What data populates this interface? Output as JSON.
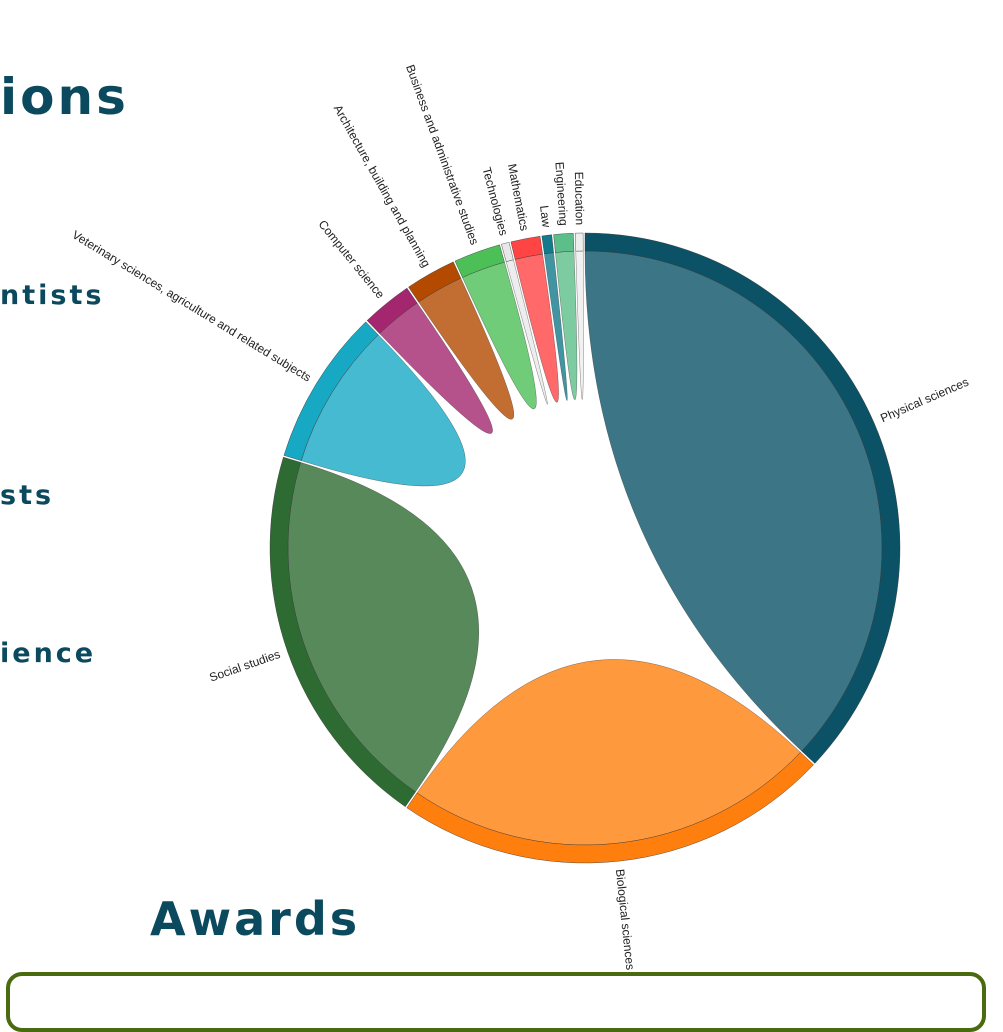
{
  "headings": [
    "ions",
    "ntists",
    "sts",
    "ience"
  ],
  "awards_heading": "Awards",
  "chart_data": {
    "type": "chord",
    "categories": [
      "Physical sciences",
      "Biological sciences",
      "Social studies",
      "Veterinary sciences, agriculture and related subjects",
      "Computer science",
      "Architecture, building and planning",
      "Business and administrative studies",
      "Technologies",
      "Mathematics",
      "Law",
      "Engineering",
      "Education"
    ],
    "values": [
      37,
      22.5,
      20,
      8,
      2.6,
      2.6,
      2.4,
      0.4,
      1.5,
      0.5,
      1.0,
      0.4
    ],
    "colors": [
      "#0b5266",
      "#ff7f0e",
      "#2e6b32",
      "#17a9c4",
      "#a3266e",
      "#b34a00",
      "#4cbf57",
      "#e8e8e8",
      "#ff4444",
      "#117a8b",
      "#5cbf8a",
      "#eeeeee"
    ]
  }
}
